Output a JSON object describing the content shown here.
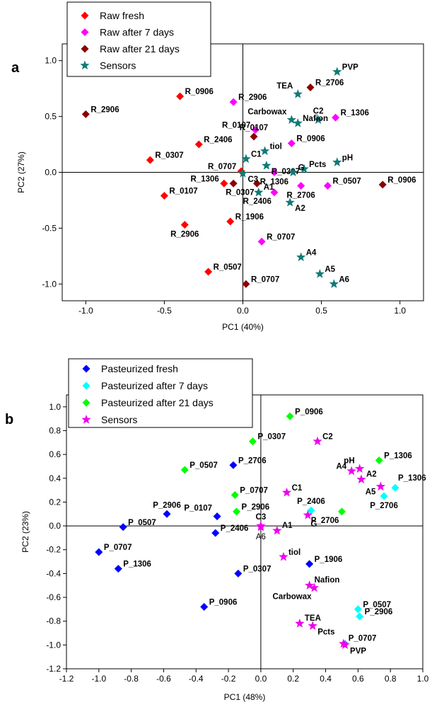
{
  "chart_data": [
    {
      "type": "scatter",
      "panel": "a",
      "xlabel": "PC1 (40%)",
      "ylabel": "PC2 (27%)",
      "xlim": [
        -1.15,
        1.15
      ],
      "ylim": [
        -1.15,
        1.15
      ],
      "xticks": [
        {
          "v": -1.0,
          "label": "-1.0"
        },
        {
          "v": -0.5,
          "label": "-0.5"
        },
        {
          "v": 0.0,
          "label": "0.0"
        },
        {
          "v": 0.5,
          "label": "0.5"
        },
        {
          "v": 1.0,
          "label": "1.0"
        }
      ],
      "yticks": [
        {
          "v": -1.0,
          "label": "-1.0"
        },
        {
          "v": -0.5,
          "label": "-0.5"
        },
        {
          "v": 0.0,
          "label": "0.0"
        },
        {
          "v": 0.5,
          "label": "0.5"
        },
        {
          "v": 1.0,
          "label": "1.0"
        }
      ],
      "crosshair": [
        0,
        0
      ],
      "legend_placement": "top-left",
      "series": [
        {
          "name": "Raw fresh",
          "marker": "diamond",
          "color": "#ff0000",
          "points": [
            {
              "label": "R_0906",
              "x": -0.4,
              "y": 0.68,
              "pos": "right"
            },
            {
              "label": "R_2406",
              "x": -0.28,
              "y": 0.25,
              "pos": "right"
            },
            {
              "label": "R_0307",
              "x": -0.59,
              "y": 0.11,
              "pos": "right"
            },
            {
              "label": "R_0707",
              "x": -0.01,
              "y": 0.01,
              "pos": "left"
            },
            {
              "label": "R_1306",
              "x": -0.12,
              "y": -0.1,
              "pos": "left"
            },
            {
              "label": "R_0107",
              "x": -0.5,
              "y": -0.21,
              "pos": "right"
            },
            {
              "label": "R_1906",
              "x": -0.08,
              "y": -0.44,
              "pos": "right"
            },
            {
              "label": "R_2906",
              "x": -0.37,
              "y": -0.47,
              "pos": "below"
            },
            {
              "label": "R_0507",
              "x": -0.22,
              "y": -0.89,
              "pos": "right"
            }
          ]
        },
        {
          "name": "Raw after 7 days",
          "marker": "diamond",
          "color": "#ff00ff",
          "points": [
            {
              "label": "R_2906",
              "x": -0.06,
              "y": 0.63,
              "pos": "right"
            },
            {
              "label": "R_1306",
              "x": 0.59,
              "y": 0.49,
              "pos": "right"
            },
            {
              "label": "R_0107",
              "x": 0.08,
              "y": 0.38,
              "pos": "left"
            },
            {
              "label": "R_0906",
              "x": 0.31,
              "y": 0.26,
              "pos": "right"
            },
            {
              "label": "R_1306",
              "x": 0.2,
              "y": 0.0,
              "pos": "below"
            },
            {
              "label": "R_2706",
              "x": 0.37,
              "y": -0.12,
              "pos": "below"
            },
            {
              "label": "R_2406",
              "x": 0.2,
              "y": -0.18,
              "pos": "belowleft"
            },
            {
              "label": "R_0507",
              "x": 0.54,
              "y": -0.12,
              "pos": "right"
            },
            {
              "label": "R_0707",
              "x": 0.12,
              "y": -0.62,
              "pos": "right"
            }
          ]
        },
        {
          "name": "Raw after 21 days",
          "marker": "diamond",
          "color": "#8b0000",
          "points": [
            {
              "label": "R_2906",
              "x": -1.0,
              "y": 0.52,
              "pos": "right"
            },
            {
              "label": "R_2706",
              "x": 0.43,
              "y": 0.76,
              "pos": "right"
            },
            {
              "label": "R_0107",
              "x": 0.07,
              "y": 0.32,
              "pos": "above"
            },
            {
              "label": "R_0307",
              "x": 0.09,
              "y": -0.1,
              "pos": "belowleft"
            },
            {
              "label": "",
              "x": -0.06,
              "y": -0.1,
              "pos": "none"
            },
            {
              "label": "R_0906",
              "x": 0.89,
              "y": -0.11,
              "pos": "right"
            },
            {
              "label": "R_0707",
              "x": 0.02,
              "y": -1.0,
              "pos": "right"
            }
          ]
        },
        {
          "name": "Sensors",
          "marker": "star",
          "color": "#117a77",
          "points": [
            {
              "label": "PVP",
              "x": 0.6,
              "y": 0.9,
              "pos": "right"
            },
            {
              "label": "TEA",
              "x": 0.35,
              "y": 0.7,
              "pos": "leftabove"
            },
            {
              "label": "C2",
              "x": 0.48,
              "y": 0.47,
              "pos": "above"
            },
            {
              "label": "Carbowax",
              "x": 0.31,
              "y": 0.47,
              "pos": "leftabove"
            },
            {
              "label": "Nafion",
              "x": 0.35,
              "y": 0.44,
              "pos": "right"
            },
            {
              "label": "tiol",
              "x": 0.14,
              "y": 0.19,
              "pos": "right"
            },
            {
              "label": "C1",
              "x": 0.02,
              "y": 0.12,
              "pos": "right"
            },
            {
              "label": "R_0307",
              "x": 0.15,
              "y": 0.06,
              "pos": "rightbelow"
            },
            {
              "label": "pH",
              "x": 0.6,
              "y": 0.09,
              "pos": "right"
            },
            {
              "label": "Pcts",
              "x": 0.39,
              "y": 0.03,
              "pos": "right"
            },
            {
              "label": "G",
              "x": 0.32,
              "y": 0.0,
              "pos": "right"
            },
            {
              "label": "C3",
              "x": 0.0,
              "y": -0.01,
              "pos": "rightbelow"
            },
            {
              "label": "A1",
              "x": 0.1,
              "y": -0.18,
              "pos": "rightabove"
            },
            {
              "label": "A2",
              "x": 0.3,
              "y": -0.27,
              "pos": "rightbelow"
            },
            {
              "label": "A4",
              "x": 0.37,
              "y": -0.76,
              "pos": "right"
            },
            {
              "label": "A5",
              "x": 0.49,
              "y": -0.91,
              "pos": "right"
            },
            {
              "label": "A6",
              "x": 0.58,
              "y": -1.0,
              "pos": "right"
            }
          ]
        }
      ]
    },
    {
      "type": "scatter",
      "panel": "b",
      "xlabel": "PC1 (48%)",
      "ylabel": "PC2 (23%)",
      "xlim": [
        -1.2,
        1.0
      ],
      "ylim": [
        -1.2,
        1.1
      ],
      "xticks": [
        {
          "v": -1.2,
          "label": "-1.2"
        },
        {
          "v": -1.0,
          "label": "-1.0"
        },
        {
          "v": -0.8,
          "label": "-0.8"
        },
        {
          "v": -0.6,
          "label": "-0.6"
        },
        {
          "v": -0.4,
          "label": "-0.4"
        },
        {
          "v": -0.2,
          "label": "-0.2"
        },
        {
          "v": 0.0,
          "label": "0.0"
        },
        {
          "v": 0.2,
          "label": "0.2"
        },
        {
          "v": 0.4,
          "label": "0.4"
        },
        {
          "v": 0.6,
          "label": "0.6"
        },
        {
          "v": 0.8,
          "label": "0.8"
        },
        {
          "v": 1.0,
          "label": "1.0"
        }
      ],
      "yticks": [
        {
          "v": -1.2,
          "label": "-1.2"
        },
        {
          "v": -1.0,
          "label": "-1.0"
        },
        {
          "v": -0.8,
          "label": "-0.8"
        },
        {
          "v": -0.6,
          "label": "-0.6"
        },
        {
          "v": -0.4,
          "label": "-0.4"
        },
        {
          "v": -0.2,
          "label": "-0.2"
        },
        {
          "v": 0.0,
          "label": "0.0"
        },
        {
          "v": 0.2,
          "label": "0.2"
        },
        {
          "v": 0.4,
          "label": "0.4"
        },
        {
          "v": 0.6,
          "label": "0.6"
        },
        {
          "v": 0.8,
          "label": "0.8"
        },
        {
          "v": 1.0,
          "label": "1.0"
        }
      ],
      "crosshair": [
        0,
        0
      ],
      "legend_placement": "top-left",
      "series": [
        {
          "name": "Pasteurized fresh",
          "marker": "diamond",
          "color": "#0000ff",
          "points": [
            {
              "label": "P_2706",
              "x": -0.17,
              "y": 0.51,
              "pos": "right"
            },
            {
              "label": "P_2906",
              "x": -0.58,
              "y": 0.1,
              "pos": "above"
            },
            {
              "label": "P_0107",
              "x": -0.27,
              "y": 0.08,
              "pos": "leftabove"
            },
            {
              "label": "P_0507",
              "x": -0.85,
              "y": -0.01,
              "pos": "right"
            },
            {
              "label": "P_2406",
              "x": -0.28,
              "y": -0.06,
              "pos": "right"
            },
            {
              "label": "P_0707",
              "x": -1.0,
              "y": -0.22,
              "pos": "right"
            },
            {
              "label": "P_1306",
              "x": -0.88,
              "y": -0.36,
              "pos": "right"
            },
            {
              "label": "P_0307",
              "x": -0.14,
              "y": -0.4,
              "pos": "right"
            },
            {
              "label": "P_1906",
              "x": 0.3,
              "y": -0.32,
              "pos": "right"
            },
            {
              "label": "P_0906",
              "x": -0.35,
              "y": -0.68,
              "pos": "right"
            }
          ]
        },
        {
          "name": "Pasteurized after 7 days",
          "marker": "diamond",
          "color": "#00ffff",
          "points": [
            {
              "label": "P_1306",
              "x": 0.83,
              "y": 0.32,
              "pos": "aboveright"
            },
            {
              "label": "P_2706",
              "x": 0.76,
              "y": 0.25,
              "pos": "below"
            },
            {
              "label": "P_2406",
              "x": 0.31,
              "y": 0.13,
              "pos": "above"
            },
            {
              "label": "P_0507",
              "x": 0.6,
              "y": -0.7,
              "pos": "right"
            },
            {
              "label": "P_2906",
              "x": 0.61,
              "y": -0.76,
              "pos": "right"
            },
            {
              "label": "",
              "x": 0.52,
              "y": -0.99,
              "pos": "none"
            }
          ]
        },
        {
          "name": "Pasteurized after 21 days",
          "marker": "diamond",
          "color": "#00ff00",
          "points": [
            {
              "label": "P_0906",
              "x": 0.18,
              "y": 0.92,
              "pos": "right"
            },
            {
              "label": "P_0307",
              "x": -0.05,
              "y": 0.71,
              "pos": "right"
            },
            {
              "label": "P_0507",
              "x": -0.47,
              "y": 0.47,
              "pos": "right"
            },
            {
              "label": "P_1306",
              "x": 0.73,
              "y": 0.55,
              "pos": "right"
            },
            {
              "label": "P_0707",
              "x": -0.16,
              "y": 0.26,
              "pos": "right"
            },
            {
              "label": "P_2906",
              "x": -0.15,
              "y": 0.12,
              "pos": "right"
            },
            {
              "label": "P_2706",
              "x": 0.5,
              "y": 0.12,
              "pos": "belowleft"
            }
          ]
        },
        {
          "name": "Sensors",
          "marker": "star",
          "color": "#ee00ee",
          "points": [
            {
              "label": "C2",
              "x": 0.35,
              "y": 0.71,
              "pos": "right"
            },
            {
              "label": "pH",
              "x": 0.61,
              "y": 0.48,
              "pos": "leftabove"
            },
            {
              "label": "A4",
              "x": 0.56,
              "y": 0.46,
              "pos": "left"
            },
            {
              "label": "A2",
              "x": 0.62,
              "y": 0.39,
              "pos": "rightabove"
            },
            {
              "label": "A5",
              "x": 0.74,
              "y": 0.33,
              "pos": "leftbelow"
            },
            {
              "label": "C1",
              "x": 0.16,
              "y": 0.28,
              "pos": "right"
            },
            {
              "label": "G",
              "x": 0.29,
              "y": 0.09,
              "pos": "belowright"
            },
            {
              "label": "A1",
              "x": 0.1,
              "y": -0.04,
              "pos": "rightabove"
            },
            {
              "label": "C3",
              "x": 0.0,
              "y": 0.0,
              "pos": "above"
            },
            {
              "label": "A6",
              "x": 0.0,
              "y": -0.01,
              "pos": "below",
              "plain": true
            },
            {
              "label": "tiol",
              "x": 0.14,
              "y": -0.26,
              "pos": "right"
            },
            {
              "label": "Nafion",
              "x": 0.3,
              "y": -0.5,
              "pos": "rightabove"
            },
            {
              "label": "Carbowax",
              "x": 0.33,
              "y": -0.52,
              "pos": "belowleft"
            },
            {
              "label": "TEA",
              "x": 0.24,
              "y": -0.82,
              "pos": "rightabove"
            },
            {
              "label": "Pcts",
              "x": 0.32,
              "y": -0.84,
              "pos": "rightbelow"
            },
            {
              "label": "P_0707",
              "x": 0.51,
              "y": -0.99,
              "pos": "rightabove"
            },
            {
              "label": "PVP",
              "x": 0.52,
              "y": -1.0,
              "pos": "rightbelow"
            }
          ]
        }
      ]
    }
  ]
}
